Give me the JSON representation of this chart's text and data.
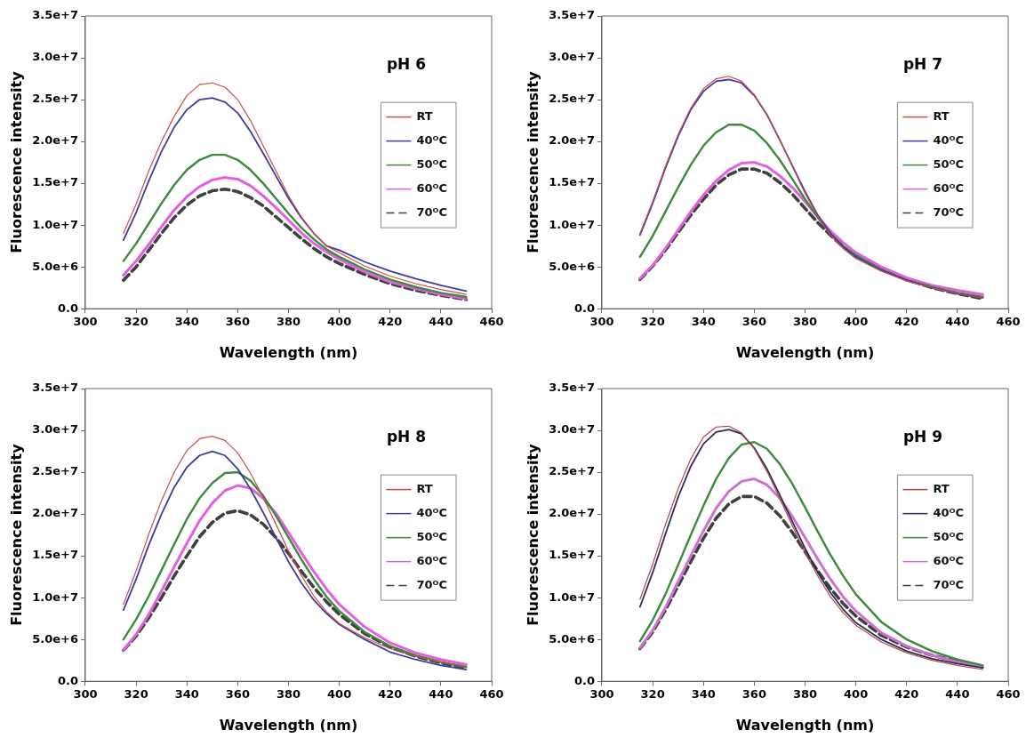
{
  "chart_data": [
    {
      "type": "line",
      "title": "pH 6",
      "xlabel": "Wavelength (nm)",
      "ylabel": "Fluorescence intensity",
      "x": [
        315,
        320,
        325,
        330,
        335,
        340,
        345,
        350,
        355,
        360,
        365,
        370,
        375,
        380,
        385,
        390,
        395,
        400,
        410,
        420,
        430,
        440,
        450
      ],
      "xlim": [
        300,
        460
      ],
      "xticks": [
        300,
        320,
        340,
        360,
        380,
        400,
        420,
        440,
        460
      ],
      "ylim": [
        0,
        35000000.0
      ],
      "yticks": [
        {
          "value": 0,
          "label": "0.0"
        },
        {
          "value": 5000000.0,
          "label": "5.0e+6"
        },
        {
          "value": 10000000.0,
          "label": "1.0e+7"
        },
        {
          "value": 15000000.0,
          "label": "1.5e+7"
        },
        {
          "value": 20000000.0,
          "label": "2.0e+7"
        },
        {
          "value": 25000000.0,
          "label": "2.5e+7"
        },
        {
          "value": 30000000.0,
          "label": "3.0e+7"
        },
        {
          "value": 35000000.0,
          "label": "3.5e+7"
        }
      ],
      "grid": false,
      "legend": "right",
      "marker": "none",
      "series": [
        {
          "name": "RT",
          "color": "#d04a4a",
          "values": [
            9000000.0,
            12500000.0,
            16500000.0,
            20000000.0,
            23000000.0,
            25500000.0,
            26800000.0,
            27000000.0,
            26500000.0,
            25000000.0,
            22500000.0,
            19500000.0,
            16500000.0,
            13500000.0,
            11000000.0,
            9000000.0,
            7500000.0,
            6700000.0,
            5100000.0,
            3900000.0,
            3000000.0,
            2300000.0,
            1700000.0
          ]
        },
        {
          "name": "40ᴼC",
          "color": "#3c3c9c",
          "values": [
            8200000.0,
            11500000.0,
            15300000.0,
            18800000.0,
            21700000.0,
            23800000.0,
            25000000.0,
            25200000.0,
            24700000.0,
            23400000.0,
            21200000.0,
            18600000.0,
            15900000.0,
            13200000.0,
            10900000.0,
            9000000.0,
            7500000.0,
            7000000.0,
            5600000.0,
            4500000.0,
            3600000.0,
            2800000.0,
            2100000.0
          ]
        },
        {
          "name": "50ᴼC",
          "color": "#3c8a3c",
          "values": [
            5700000.0,
            7800000.0,
            10200000.0,
            12600000.0,
            14800000.0,
            16600000.0,
            17800000.0,
            18400000.0,
            18400000.0,
            17800000.0,
            16600000.0,
            15000000.0,
            13200000.0,
            11400000.0,
            9700000.0,
            8300000.0,
            7100000.0,
            6200000.0,
            4700000.0,
            3500000.0,
            2600000.0,
            1900000.0,
            1400000.0
          ]
        },
        {
          "name": "60ᴼC",
          "color": "#e060e0",
          "values": [
            4000000.0,
            5700000.0,
            7700000.0,
            9800000.0,
            11800000.0,
            13400000.0,
            14600000.0,
            15400000.0,
            15700000.0,
            15500000.0,
            14700000.0,
            13500000.0,
            12100000.0,
            10600000.0,
            9100000.0,
            7800000.0,
            6800000.0,
            5900000.0,
            4400000.0,
            3200000.0,
            2400000.0,
            1700000.0,
            1200000.0
          ]
        },
        {
          "name": "70ᴼC",
          "color": "#404040",
          "line_style": "dashed",
          "values": [
            3400000.0,
            5000000.0,
            7000000.0,
            9000000.0,
            10900000.0,
            12400000.0,
            13500000.0,
            14100000.0,
            14300000.0,
            14000000.0,
            13300000.0,
            12300000.0,
            11000000.0,
            9700000.0,
            8400000.0,
            7200000.0,
            6200000.0,
            5400000.0,
            4100000.0,
            3000000.0,
            2200000.0,
            1600000.0,
            1100000.0
          ]
        }
      ]
    },
    {
      "type": "line",
      "title": "pH 7",
      "xlabel": "Wavelength (nm)",
      "ylabel": "Fluorescence intensity",
      "x": [
        315,
        320,
        325,
        330,
        335,
        340,
        345,
        350,
        355,
        360,
        365,
        370,
        375,
        380,
        385,
        390,
        395,
        400,
        410,
        420,
        430,
        440,
        450
      ],
      "xlim": [
        300,
        460
      ],
      "xticks": [
        300,
        320,
        340,
        360,
        380,
        400,
        420,
        440,
        460
      ],
      "ylim": [
        0,
        35000000.0
      ],
      "yticks": [
        {
          "value": 0,
          "label": "0.0"
        },
        {
          "value": 5000000.0,
          "label": "5.0e+6"
        },
        {
          "value": 10000000.0,
          "label": "1.0e+7"
        },
        {
          "value": 15000000.0,
          "label": "1.5e+7"
        },
        {
          "value": 20000000.0,
          "label": "2.0e+7"
        },
        {
          "value": 25000000.0,
          "label": "2.5e+7"
        },
        {
          "value": 30000000.0,
          "label": "3.0e+7"
        },
        {
          "value": 35000000.0,
          "label": "3.5e+7"
        }
      ],
      "grid": false,
      "legend": "right",
      "marker": "none",
      "series": [
        {
          "name": "RT",
          "color": "#d04a4a",
          "values": [
            9000000.0,
            12800000.0,
            17000000.0,
            20800000.0,
            24000000.0,
            26300000.0,
            27500000.0,
            27800000.0,
            27200000.0,
            25600000.0,
            23200000.0,
            20200000.0,
            17000000.0,
            13800000.0,
            11000000.0,
            8800000.0,
            7200000.0,
            6000000.0,
            4500000.0,
            3300000.0,
            2500000.0,
            1800000.0,
            1300000.0
          ]
        },
        {
          "name": "40ᴼC",
          "color": "#3c3c9c",
          "values": [
            8800000.0,
            12600000.0,
            16800000.0,
            20600000.0,
            23800000.0,
            26000000.0,
            27200000.0,
            27400000.0,
            27000000.0,
            25500000.0,
            23200000.0,
            20200000.0,
            17100000.0,
            14000000.0,
            11200000.0,
            9000000.0,
            7400000.0,
            6200000.0,
            4600000.0,
            3400000.0,
            2500000.0,
            1800000.0,
            1300000.0
          ]
        },
        {
          "name": "50ᴼC",
          "color": "#3c8a3c",
          "values": [
            6200000.0,
            8700000.0,
            11600000.0,
            14500000.0,
            17200000.0,
            19500000.0,
            21100000.0,
            22000000.0,
            22000000.0,
            21300000.0,
            19800000.0,
            17800000.0,
            15500000.0,
            13100000.0,
            10900000.0,
            9000000.0,
            7500000.0,
            6400000.0,
            4700000.0,
            3400000.0,
            2600000.0,
            1900000.0,
            1400000.0
          ]
        },
        {
          "name": "60ᴼC",
          "color": "#e060e0",
          "values": [
            3600000.0,
            5200000.0,
            7200000.0,
            9400000.0,
            11600000.0,
            13600000.0,
            15300000.0,
            16600000.0,
            17400000.0,
            17500000.0,
            17000000.0,
            15900000.0,
            14500000.0,
            12800000.0,
            11000000.0,
            9300000.0,
            7900000.0,
            6700000.0,
            5000000.0,
            3700000.0,
            2800000.0,
            2200000.0,
            1700000.0
          ]
        },
        {
          "name": "70ᴼC",
          "color": "#404040",
          "line_style": "dashed",
          "values": [
            3500000.0,
            5100000.0,
            7000000.0,
            9100000.0,
            11200000.0,
            13100000.0,
            14800000.0,
            16000000.0,
            16700000.0,
            16700000.0,
            16200000.0,
            15100000.0,
            13700000.0,
            12000000.0,
            10300000.0,
            8800000.0,
            7400000.0,
            6300000.0,
            4800000.0,
            3500000.0,
            2500000.0,
            1800000.0,
            1200000.0
          ]
        }
      ]
    },
    {
      "type": "line",
      "title": "pH 8",
      "xlabel": "Wavelength (nm)",
      "ylabel": "Fluorescence intensity",
      "x": [
        315,
        320,
        325,
        330,
        335,
        340,
        345,
        350,
        355,
        360,
        365,
        370,
        375,
        380,
        385,
        390,
        395,
        400,
        410,
        420,
        430,
        440,
        450
      ],
      "xlim": [
        300,
        460
      ],
      "xticks": [
        300,
        320,
        340,
        360,
        380,
        400,
        420,
        440,
        460
      ],
      "ylim": [
        0,
        35000000.0
      ],
      "yticks": [
        {
          "value": 0,
          "label": "0.0"
        },
        {
          "value": 5000000.0,
          "label": "5.0e+6"
        },
        {
          "value": 10000000.0,
          "label": "1.0e+7"
        },
        {
          "value": 15000000.0,
          "label": "1.5e+7"
        },
        {
          "value": 20000000.0,
          "label": "2.0e+7"
        },
        {
          "value": 25000000.0,
          "label": "2.5e+7"
        },
        {
          "value": 30000000.0,
          "label": "3.0e+7"
        },
        {
          "value": 35000000.0,
          "label": "3.5e+7"
        }
      ],
      "grid": false,
      "legend": "right",
      "marker": "none",
      "series": [
        {
          "name": "RT",
          "color": "#d04a4a",
          "values": [
            9200000.0,
            13200000.0,
            17600000.0,
            21600000.0,
            25000000.0,
            27600000.0,
            29000000.0,
            29300000.0,
            28800000.0,
            27300000.0,
            24900000.0,
            22000000.0,
            18800000.0,
            15600000.0,
            12700000.0,
            10200000.0,
            8300000.0,
            6900000.0,
            5200000.0,
            3900000.0,
            3000000.0,
            2300000.0,
            1800000.0
          ]
        },
        {
          "name": "40ᴼC",
          "color": "#3c3c9c",
          "values": [
            8500000.0,
            12200000.0,
            16300000.0,
            20000000.0,
            23200000.0,
            25600000.0,
            27000000.0,
            27500000.0,
            27000000.0,
            25400000.0,
            23000000.0,
            20200000.0,
            17200000.0,
            14300000.0,
            11800000.0,
            9700000.0,
            8100000.0,
            6800000.0,
            5000000.0,
            3500000.0,
            2600000.0,
            1900000.0,
            1400000.0
          ]
        },
        {
          "name": "50ᴼC",
          "color": "#3c8a3c",
          "values": [
            5000000.0,
            7400000.0,
            10200000.0,
            13300000.0,
            16400000.0,
            19400000.0,
            21900000.0,
            23700000.0,
            24900000.0,
            25000000.0,
            24000000.0,
            22200000.0,
            19800000.0,
            17200000.0,
            14600000.0,
            12200000.0,
            10100000.0,
            8400000.0,
            5900000.0,
            4200000.0,
            3100000.0,
            2300000.0,
            1700000.0
          ]
        },
        {
          "name": "60ᴼC",
          "color": "#e060e0",
          "values": [
            3700000.0,
            5600000.0,
            8000000.0,
            10800000.0,
            13700000.0,
            16500000.0,
            19200000.0,
            21300000.0,
            22800000.0,
            23400000.0,
            23100000.0,
            21900000.0,
            20100000.0,
            17800000.0,
            15400000.0,
            13100000.0,
            11000000.0,
            9200000.0,
            6500000.0,
            4600000.0,
            3400000.0,
            2600000.0,
            2000000.0
          ]
        },
        {
          "name": "70ᴼC",
          "color": "#404040",
          "line_style": "dashed",
          "values": [
            3700000.0,
            5400000.0,
            7600000.0,
            10000000.0,
            12600000.0,
            15000000.0,
            17300000.0,
            19000000.0,
            20100000.0,
            20400000.0,
            19900000.0,
            18800000.0,
            17200000.0,
            15300000.0,
            13200000.0,
            11200000.0,
            9500000.0,
            8000000.0,
            5700000.0,
            4100000.0,
            3000000.0,
            2200000.0,
            1600000.0
          ]
        }
      ]
    },
    {
      "type": "line",
      "title": "pH 9",
      "xlabel": "Wavelength (nm)",
      "ylabel": "Fluorescence intensity",
      "x": [
        315,
        320,
        325,
        330,
        335,
        340,
        345,
        350,
        355,
        360,
        365,
        370,
        375,
        380,
        385,
        390,
        395,
        400,
        410,
        420,
        430,
        440,
        450
      ],
      "xlim": [
        300,
        460
      ],
      "xticks": [
        300,
        320,
        340,
        360,
        380,
        400,
        420,
        440,
        460
      ],
      "ylim": [
        0,
        35000000.0
      ],
      "yticks": [
        {
          "value": 0,
          "label": "0.0"
        },
        {
          "value": 5000000.0,
          "label": "5.0e+6"
        },
        {
          "value": 10000000.0,
          "label": "1.0e+7"
        },
        {
          "value": 15000000.0,
          "label": "1.5e+7"
        },
        {
          "value": 20000000.0,
          "label": "2.0e+7"
        },
        {
          "value": 25000000.0,
          "label": "2.5e+7"
        },
        {
          "value": 30000000.0,
          "label": "3.0e+7"
        },
        {
          "value": 35000000.0,
          "label": "3.5e+7"
        }
      ],
      "grid": false,
      "legend": "right",
      "marker": "none",
      "series": [
        {
          "name": "RT",
          "color": "#b04848",
          "values": [
            9800000.0,
            14000000.0,
            18700000.0,
            23000000.0,
            26600000.0,
            29200000.0,
            30400000.0,
            30500000.0,
            29700000.0,
            27800000.0,
            25100000.0,
            21900000.0,
            18600000.0,
            15400000.0,
            12600000.0,
            10100000.0,
            8200000.0,
            6700000.0,
            4700000.0,
            3400000.0,
            2500000.0,
            1900000.0,
            1400000.0
          ]
        },
        {
          "name": "40ᴼC",
          "color": "#2c2c5c",
          "values": [
            8900000.0,
            13000000.0,
            17600000.0,
            22000000.0,
            25700000.0,
            28400000.0,
            29800000.0,
            30100000.0,
            29600000.0,
            27900000.0,
            25400000.0,
            22300000.0,
            19100000.0,
            15900000.0,
            13000000.0,
            10600000.0,
            8600000.0,
            7000000.0,
            5000000.0,
            3600000.0,
            2700000.0,
            2100000.0,
            1600000.0
          ]
        },
        {
          "name": "50ᴼC",
          "color": "#3c8a3c",
          "values": [
            4800000.0,
            7300000.0,
            10400000.0,
            13900000.0,
            17500000.0,
            21000000.0,
            24200000.0,
            26700000.0,
            28300000.0,
            28600000.0,
            27800000.0,
            26000000.0,
            23600000.0,
            20800000.0,
            17900000.0,
            15100000.0,
            12600000.0,
            10400000.0,
            7100000.0,
            5000000.0,
            3600000.0,
            2600000.0,
            1900000.0
          ]
        },
        {
          "name": "60ᴼC",
          "color": "#d070d0",
          "values": [
            4000000.0,
            6100000.0,
            8800000.0,
            11900000.0,
            15000000.0,
            18000000.0,
            20700000.0,
            22700000.0,
            23900000.0,
            24200000.0,
            23500000.0,
            21900000.0,
            19700000.0,
            17200000.0,
            14600000.0,
            12200000.0,
            10100000.0,
            8400000.0,
            5800000.0,
            4200000.0,
            3100000.0,
            2300000.0,
            1700000.0
          ]
        },
        {
          "name": "70ᴼC",
          "color": "#404040",
          "line_style": "dashed",
          "values": [
            3900000.0,
            5900000.0,
            8500000.0,
            11400000.0,
            14300000.0,
            17100000.0,
            19500000.0,
            21200000.0,
            22100000.0,
            22100000.0,
            21300000.0,
            19800000.0,
            17800000.0,
            15500000.0,
            13200000.0,
            11100000.0,
            9300000.0,
            7800000.0,
            5500000.0,
            4100000.0,
            3100000.0,
            2400000.0,
            1800000.0
          ]
        }
      ]
    }
  ]
}
